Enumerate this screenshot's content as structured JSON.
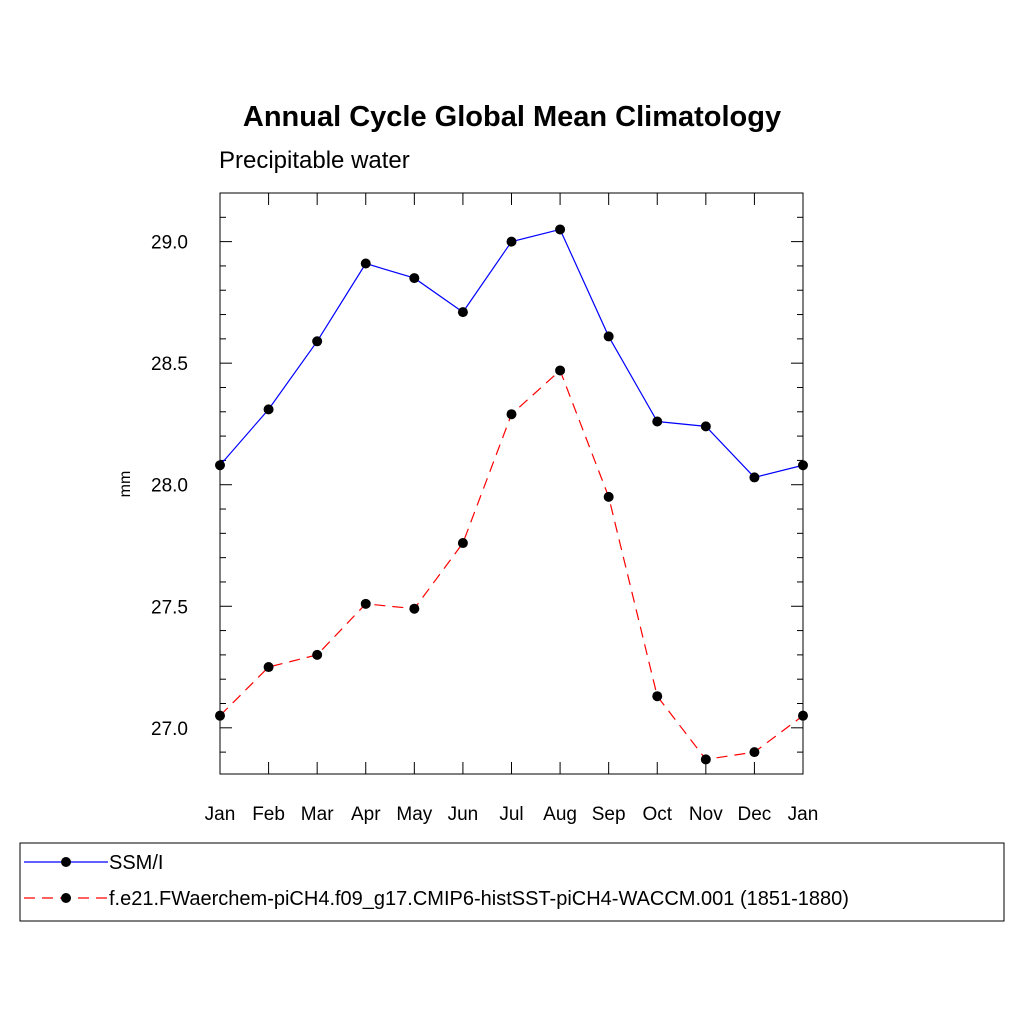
{
  "chart_data": {
    "type": "line",
    "title": "Annual Cycle Global Mean Climatology",
    "subtitle": "Precipitable water",
    "xlabel": "",
    "ylabel": "mm",
    "categories": [
      "Jan",
      "Feb",
      "Mar",
      "Apr",
      "May",
      "Jun",
      "Jul",
      "Aug",
      "Sep",
      "Oct",
      "Nov",
      "Dec",
      "Jan"
    ],
    "ylim": [
      26.81,
      29.2
    ],
    "yticks": [
      27.0,
      27.5,
      28.0,
      28.5,
      29.0
    ],
    "ytick_labels": [
      "27.0",
      "27.5",
      "28.0",
      "28.5",
      "29.0"
    ],
    "grid": false,
    "legend_position": "bottom",
    "series": [
      {
        "name": "SSM/I",
        "color": "#0000ff",
        "dash": "solid",
        "marker": "filled-circle",
        "values": [
          28.08,
          28.31,
          28.59,
          28.91,
          28.85,
          28.71,
          29.0,
          29.05,
          28.61,
          28.26,
          28.24,
          28.03,
          28.08
        ]
      },
      {
        "name": "f.e21.FWaerchem-piCH4.f09_g17.CMIP6-histSST-piCH4-WACCM.001 (1851-1880)",
        "color": "#ff0000",
        "dash": "dashed",
        "marker": "filled-circle",
        "values": [
          27.05,
          27.25,
          27.3,
          27.51,
          27.49,
          27.76,
          28.29,
          28.47,
          27.95,
          27.13,
          26.87,
          26.9,
          27.05
        ]
      }
    ]
  }
}
